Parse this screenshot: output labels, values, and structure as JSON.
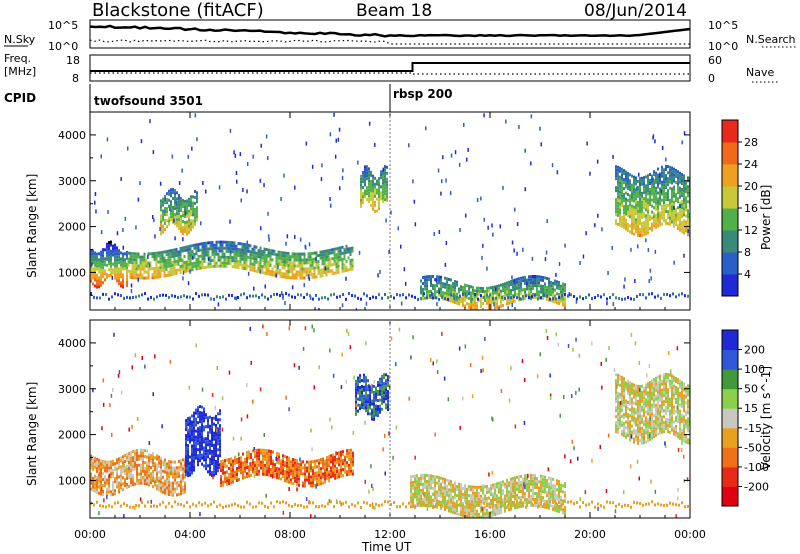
{
  "header": {
    "station": "Blackstone (fitACF)",
    "beam": "Beam 18",
    "date": "08/Jun/2014"
  },
  "housekeeping": {
    "nsky_label": "N.Sky",
    "nsky_top": "10^5",
    "nsky_bottom": "10^0",
    "nsearch_label": "N.Search",
    "nsearch_top": "10^5",
    "nsearch_bottom": "10^0",
    "freq_label_1": "Freq.",
    "freq_label_2": "[MHz]",
    "freq_ticks": [
      "18",
      "8"
    ],
    "nave_label": "Nave",
    "nave_ticks": [
      "60",
      "0"
    ],
    "cpid_label": "CPID",
    "cpid_segments": [
      {
        "name": "twofsound 3501",
        "start_hour": 0,
        "end_hour": 12
      },
      {
        "name": "rbsp 200",
        "start_hour": 12,
        "end_hour": 24
      }
    ]
  },
  "chart_data": [
    {
      "type": "heatmap",
      "panel": "power",
      "ylabel": "Slant Range [km]",
      "ylim": [
        180,
        4500
      ],
      "yticks": [
        "1000",
        "2000",
        "3000",
        "4000"
      ],
      "xlim_hours": [
        0,
        24
      ],
      "colorbar": {
        "label": "Power [dB]",
        "ticks": [
          "4",
          "8",
          "12",
          "16",
          "20",
          "24",
          "28"
        ],
        "colors": [
          "#1f2ad6",
          "#2a5fc8",
          "#3a8a7a",
          "#52b04a",
          "#c8c83a",
          "#f0a020",
          "#f06a1a",
          "#e82a1a"
        ]
      },
      "echo_regions": [
        {
          "from_hour": 0.0,
          "to_hour": 1.5,
          "range_km": [
            750,
            1650
          ],
          "level_db": "8-28"
        },
        {
          "from_hour": 1.5,
          "to_hour": 10.5,
          "range_km": [
            950,
            1650
          ],
          "level_db": "4-16"
        },
        {
          "from_hour": 2.8,
          "to_hour": 4.3,
          "range_km": [
            1900,
            2800
          ],
          "level_db": "8-16"
        },
        {
          "from_hour": 10.8,
          "to_hour": 11.9,
          "range_km": [
            2400,
            3300
          ],
          "level_db": "4-20"
        },
        {
          "from_hour": 13.2,
          "to_hour": 19.0,
          "range_km": [
            300,
            900
          ],
          "level_db": "4-16"
        },
        {
          "from_hour": 21.0,
          "to_hour": 24.0,
          "range_km": [
            1900,
            3300
          ],
          "level_db": "4-20"
        }
      ]
    },
    {
      "type": "heatmap",
      "panel": "velocity",
      "ylabel": "Slant Range [km]",
      "xlabel": "Time UT",
      "ylim": [
        180,
        4500
      ],
      "yticks": [
        "1000",
        "2000",
        "3000",
        "4000"
      ],
      "xlim_hours": [
        0,
        24
      ],
      "xticks": [
        "00:00",
        "04:00",
        "08:00",
        "12:00",
        "16:00",
        "20:00",
        "00:00"
      ],
      "colorbar": {
        "label": "Velocity [m s^-1]",
        "ticks": [
          "200",
          "100",
          "50",
          "15",
          "-15",
          "-50",
          "-100",
          "-200"
        ],
        "colors": [
          "#1f2ad6",
          "#2f58d8",
          "#3e9a3a",
          "#8ad04a",
          "#c8c8c0",
          "#e8a020",
          "#f07018",
          "#e82a1a",
          "#e00010"
        ]
      },
      "echo_regions": [
        {
          "from_hour": 0.0,
          "to_hour": 3.8,
          "range_km": [
            750,
            1650
          ],
          "velocity_ms": "-50 to 15"
        },
        {
          "from_hour": 3.8,
          "to_hour": 5.2,
          "range_km": [
            1200,
            2600
          ],
          "velocity_ms": "100 to 200"
        },
        {
          "from_hour": 5.2,
          "to_hour": 10.5,
          "range_km": [
            950,
            1650
          ],
          "velocity_ms": "-100 to -15"
        },
        {
          "from_hour": 10.6,
          "to_hour": 11.9,
          "range_km": [
            2400,
            3300
          ],
          "velocity_ms": "50 to 200"
        },
        {
          "from_hour": 12.8,
          "to_hour": 19.0,
          "range_km": [
            300,
            1100
          ],
          "velocity_ms": "-15 to 15"
        },
        {
          "from_hour": 21.0,
          "to_hour": 24.0,
          "range_km": [
            1900,
            3300
          ],
          "velocity_ms": "-15 to 15"
        }
      ]
    }
  ]
}
